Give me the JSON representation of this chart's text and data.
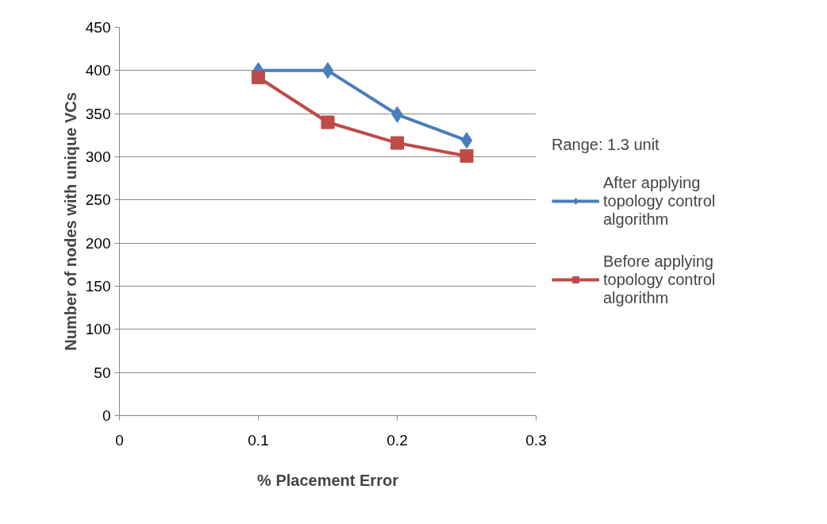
{
  "chart_data": {
    "type": "line",
    "xlabel": "% Placement Error",
    "ylabel": "Number of nodes with unique VCs",
    "legend_title": "Range: 1.3 unit",
    "x": [
      0.1,
      0.15,
      0.2,
      0.25
    ],
    "series": [
      {
        "name": "After applying topology control algorithm",
        "color": "#4a7ebb",
        "marker": "diamond",
        "values": [
          400,
          400,
          349,
          319
        ]
      },
      {
        "name": "Before applying topology control algorithm",
        "color": "#be4b48",
        "marker": "square",
        "values": [
          392,
          340,
          316,
          301
        ]
      }
    ],
    "xlim": [
      0,
      0.3
    ],
    "xticks": [
      0,
      0.1,
      0.2,
      0.3
    ],
    "ylim": [
      0,
      450
    ],
    "yticks": [
      0,
      50,
      100,
      150,
      200,
      250,
      300,
      350,
      400,
      450
    ],
    "grid": "y",
    "legend": "right",
    "line_style": "solid"
  }
}
